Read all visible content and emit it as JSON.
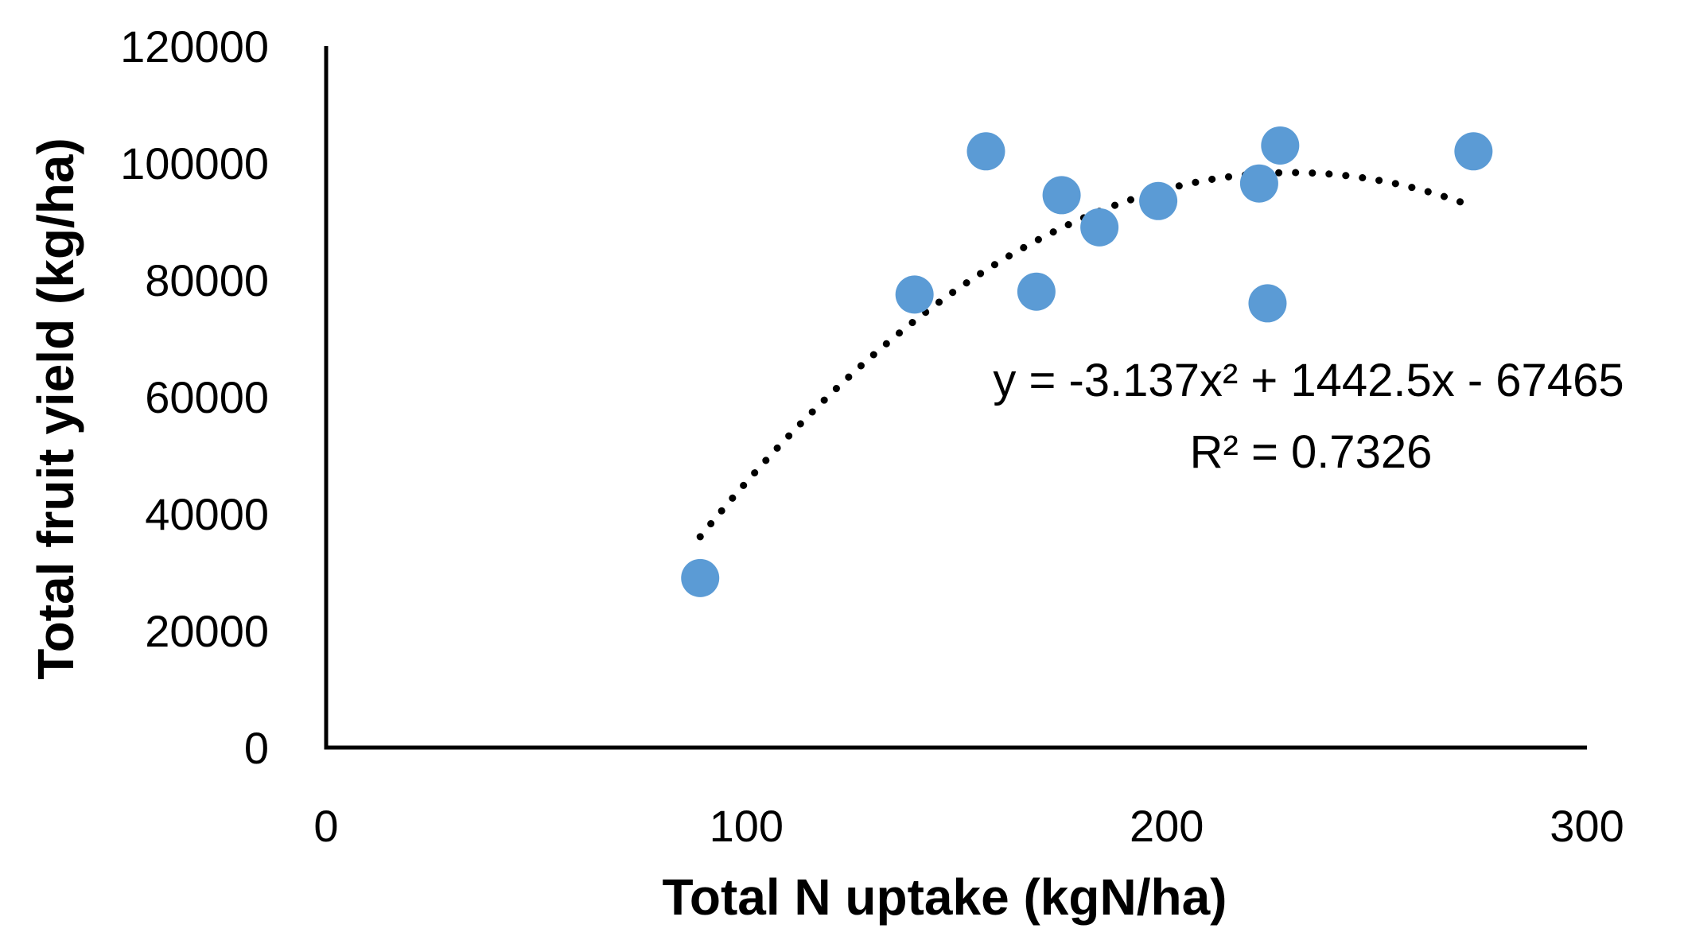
{
  "chart_data": {
    "type": "scatter",
    "title": "",
    "xlabel": "Total N uptake (kgN/ha)",
    "ylabel": "Total fruit yield (kg/ha)",
    "xlim": [
      0,
      300
    ],
    "ylim": [
      0,
      120000
    ],
    "x_ticks": [
      "0",
      "100",
      "200",
      "300"
    ],
    "y_ticks": [
      "0",
      "20000",
      "40000",
      "60000",
      "80000",
      "100000",
      "120000"
    ],
    "grid": false,
    "legend": "none",
    "series": [
      {
        "color": "#5B9BD5",
        "points": [
          {
            "x": 89,
            "y": 29000
          },
          {
            "x": 140,
            "y": 77500
          },
          {
            "x": 157,
            "y": 102000
          },
          {
            "x": 169,
            "y": 78000
          },
          {
            "x": 175,
            "y": 94500
          },
          {
            "x": 184,
            "y": 89000
          },
          {
            "x": 198,
            "y": 93500
          },
          {
            "x": 222,
            "y": 96500
          },
          {
            "x": 224,
            "y": 76000
          },
          {
            "x": 227,
            "y": 103000
          },
          {
            "x": 273,
            "y": 102000
          }
        ]
      }
    ],
    "trendline": {
      "type": "polynomial",
      "order": 2,
      "coefficients": {
        "a": -3.137,
        "b": 1442.5,
        "c": -67465
      },
      "x_range": [
        89,
        270
      ],
      "color": "#000000",
      "style": "dotted",
      "equation_text": "y = -3.137x² + 1442.5x - 67465",
      "r2_text": "R² = 0.7326"
    }
  }
}
